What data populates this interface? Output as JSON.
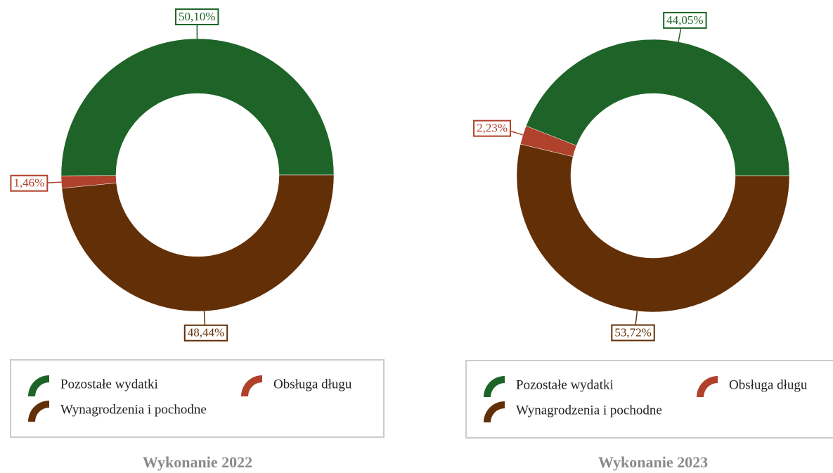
{
  "chart_data": [
    {
      "type": "donut",
      "title": "Wykonanie 2022",
      "categories": [
        "Pozostałe wydatki",
        "Obsługa długu",
        "Wynagrodzenia i pochodne"
      ],
      "values": [
        50.1,
        1.46,
        48.44
      ],
      "value_labels": [
        "50,10%",
        "1,46%",
        "48,44%"
      ],
      "colors": [
        "#1e6428",
        "#b0412a",
        "#622f07"
      ]
    },
    {
      "type": "donut",
      "title": "Wykonanie 2023",
      "categories": [
        "Pozostałe wydatki",
        "Obsługa długu",
        "Wynagrodzenia i pochodne"
      ],
      "values": [
        44.05,
        2.23,
        53.72
      ],
      "value_labels": [
        "44,05%",
        "2,23%",
        "53,72%"
      ],
      "colors": [
        "#1e6428",
        "#b0412a",
        "#622f07"
      ]
    }
  ]
}
